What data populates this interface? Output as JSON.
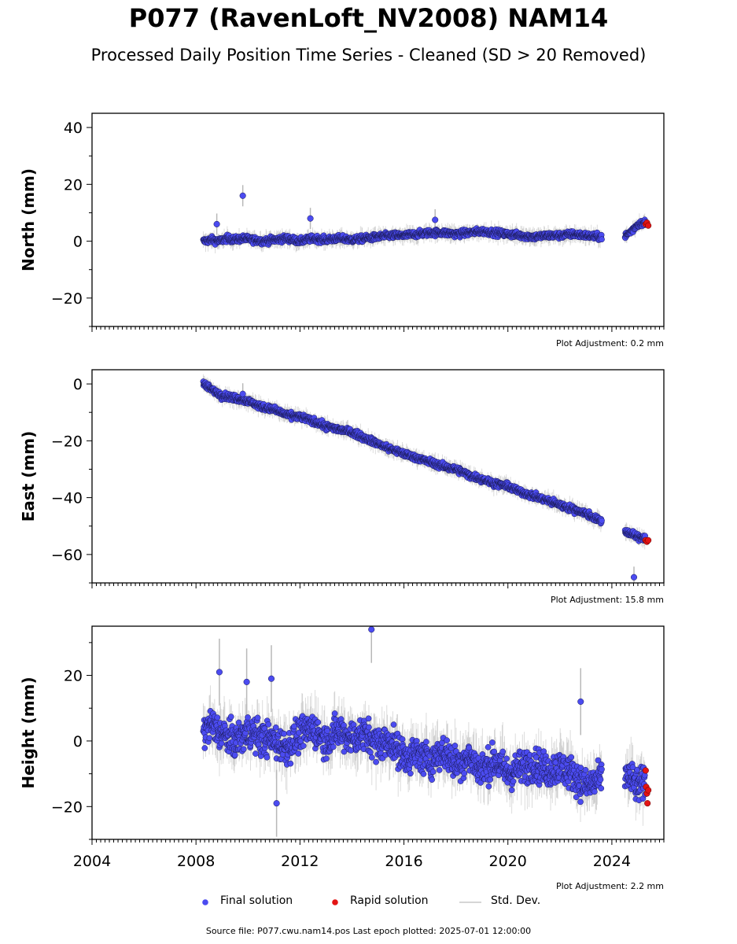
{
  "title": "P077 (RavenLoft_NV2008) NAM14",
  "subtitle": "Processed Daily Position Time Series - Cleaned (SD > 20 Removed)",
  "source_text": "Source file: P077.cwu.nam14.pos  Last epoch plotted: 2025-07-01 12:00:00",
  "colors": {
    "final": "#4b4bf0",
    "rapid": "#e31414",
    "std": "#b8b8b8"
  },
  "legend": [
    {
      "label": "Final solution",
      "color": "#4b4bf0"
    },
    {
      "label": "Rapid solution",
      "color": "#e31414"
    },
    {
      "label": "Std. Dev.",
      "color": "#c8c8c8"
    }
  ],
  "chart_data": [
    {
      "type": "scatter",
      "ylabel": "North (mm)",
      "xlim": [
        2004,
        2026
      ],
      "ylim": [
        -30,
        45
      ],
      "yticks": [
        -20,
        0,
        20,
        40
      ],
      "adjustment_label": "Plot Adjustment: 0.2 mm",
      "series": [
        {
          "name": "Final solution",
          "role": "final",
          "x": [
            2008.3,
            2008.6,
            2008.9,
            2009.2,
            2009.5,
            2009.8,
            2010.2,
            2010.6,
            2011.0,
            2011.5,
            2012.0,
            2012.5,
            2013.0,
            2013.5,
            2014.0,
            2014.5,
            2015.0,
            2015.5,
            2016.0,
            2016.5,
            2017.0,
            2017.5,
            2018.0,
            2018.5,
            2019.0,
            2019.5,
            2020.0,
            2020.5,
            2021.0,
            2021.5,
            2022.0,
            2022.5,
            2023.0,
            2023.5,
            2024.55,
            2024.8,
            2025.0,
            2025.2
          ],
          "y": [
            0,
            0.5,
            0,
            1,
            0.5,
            1,
            0.5,
            0,
            0.5,
            1,
            0,
            1,
            0.5,
            1,
            0.5,
            1,
            1.5,
            2,
            2,
            2.5,
            3,
            3,
            2.5,
            3,
            3.5,
            3,
            2.5,
            2,
            1.5,
            2,
            2,
            2.5,
            2,
            1.5,
            2,
            4,
            6,
            6.5
          ]
        },
        {
          "name": "Rapid solution",
          "role": "rapid",
          "x": [
            2025.3,
            2025.35,
            2025.4
          ],
          "y": [
            6,
            6.5,
            5.5
          ]
        }
      ],
      "outliers": {
        "x": [
          2008.8,
          2009.8,
          2012.4,
          2017.2
        ],
        "y": [
          6,
          16,
          8,
          7.5
        ]
      }
    },
    {
      "type": "scatter",
      "ylabel": "East (mm)",
      "xlim": [
        2004,
        2026
      ],
      "ylim": [
        -70,
        5
      ],
      "yticks": [
        -60,
        -40,
        -20,
        0
      ],
      "adjustment_label": "Plot Adjustment: 15.8 mm",
      "series": [
        {
          "name": "Final solution",
          "role": "final",
          "x": [
            2008.3,
            2008.6,
            2009.0,
            2009.5,
            2010.0,
            2010.5,
            2011.0,
            2011.5,
            2012.0,
            2012.5,
            2013.0,
            2013.5,
            2014.0,
            2014.5,
            2015.0,
            2015.5,
            2016.0,
            2016.5,
            2017.0,
            2017.5,
            2018.0,
            2018.5,
            2019.0,
            2019.5,
            2020.0,
            2020.5,
            2021.0,
            2021.5,
            2022.0,
            2022.5,
            2023.0,
            2023.5,
            2024.55,
            2024.8,
            2025.0,
            2025.2
          ],
          "y": [
            0,
            -2,
            -4,
            -5,
            -6,
            -8,
            -9,
            -11,
            -11.5,
            -13,
            -15,
            -16,
            -17,
            -19,
            -21,
            -23,
            -24.5,
            -26,
            -27.5,
            -29,
            -30,
            -32,
            -33.5,
            -35,
            -36,
            -38,
            -39.5,
            -41,
            -42.5,
            -44,
            -45.5,
            -48,
            -52,
            -53,
            -54,
            -54
          ]
        },
        {
          "name": "Rapid solution",
          "role": "rapid",
          "x": [
            2025.3,
            2025.35,
            2025.4
          ],
          "y": [
            -55,
            -55.5,
            -55
          ]
        }
      ],
      "outliers": {
        "x": [
          2024.85,
          2009.8
        ],
        "y": [
          -68,
          -3.5
        ]
      }
    },
    {
      "type": "scatter",
      "ylabel": "Height (mm)",
      "xlim": [
        2004,
        2026
      ],
      "ylim": [
        -30,
        35
      ],
      "yticks": [
        -20,
        0,
        20
      ],
      "xticks": [
        2004,
        2008,
        2012,
        2016,
        2020,
        2024
      ],
      "adjustment_label": "Plot Adjustment: 2.2 mm",
      "series": [
        {
          "name": "Final solution",
          "role": "final",
          "x": [
            2008.3,
            2008.6,
            2009.0,
            2009.5,
            2010.0,
            2010.5,
            2011.0,
            2011.5,
            2012.0,
            2012.5,
            2013.0,
            2013.5,
            2014.0,
            2014.5,
            2015.0,
            2015.5,
            2016.0,
            2016.5,
            2017.0,
            2017.5,
            2018.0,
            2018.5,
            2019.0,
            2019.5,
            2020.0,
            2020.5,
            2021.0,
            2021.5,
            2022.0,
            2022.5,
            2023.0,
            2023.5,
            2024.55,
            2024.8,
            2025.0,
            2025.2
          ],
          "y": [
            3,
            5,
            2,
            0,
            3,
            1,
            0,
            -2,
            2,
            4,
            0,
            3,
            1,
            2,
            -1,
            0,
            -5,
            -4,
            -6,
            -3,
            -7,
            -5,
            -9,
            -6,
            -10,
            -8,
            -7,
            -9,
            -8,
            -10,
            -14,
            -12,
            -10,
            -12,
            -14,
            -13
          ]
        },
        {
          "name": "Rapid solution",
          "role": "rapid",
          "x": [
            2025.3,
            2025.32,
            2025.35,
            2025.37,
            2025.4
          ],
          "y": [
            -9,
            -14,
            -16,
            -19,
            -15
          ]
        }
      ],
      "outliers": {
        "x": [
          2008.9,
          2009.95,
          2010.9,
          2011.1,
          2014.75,
          2022.8
        ],
        "y": [
          21,
          18,
          19,
          -19,
          34,
          12
        ]
      }
    }
  ]
}
